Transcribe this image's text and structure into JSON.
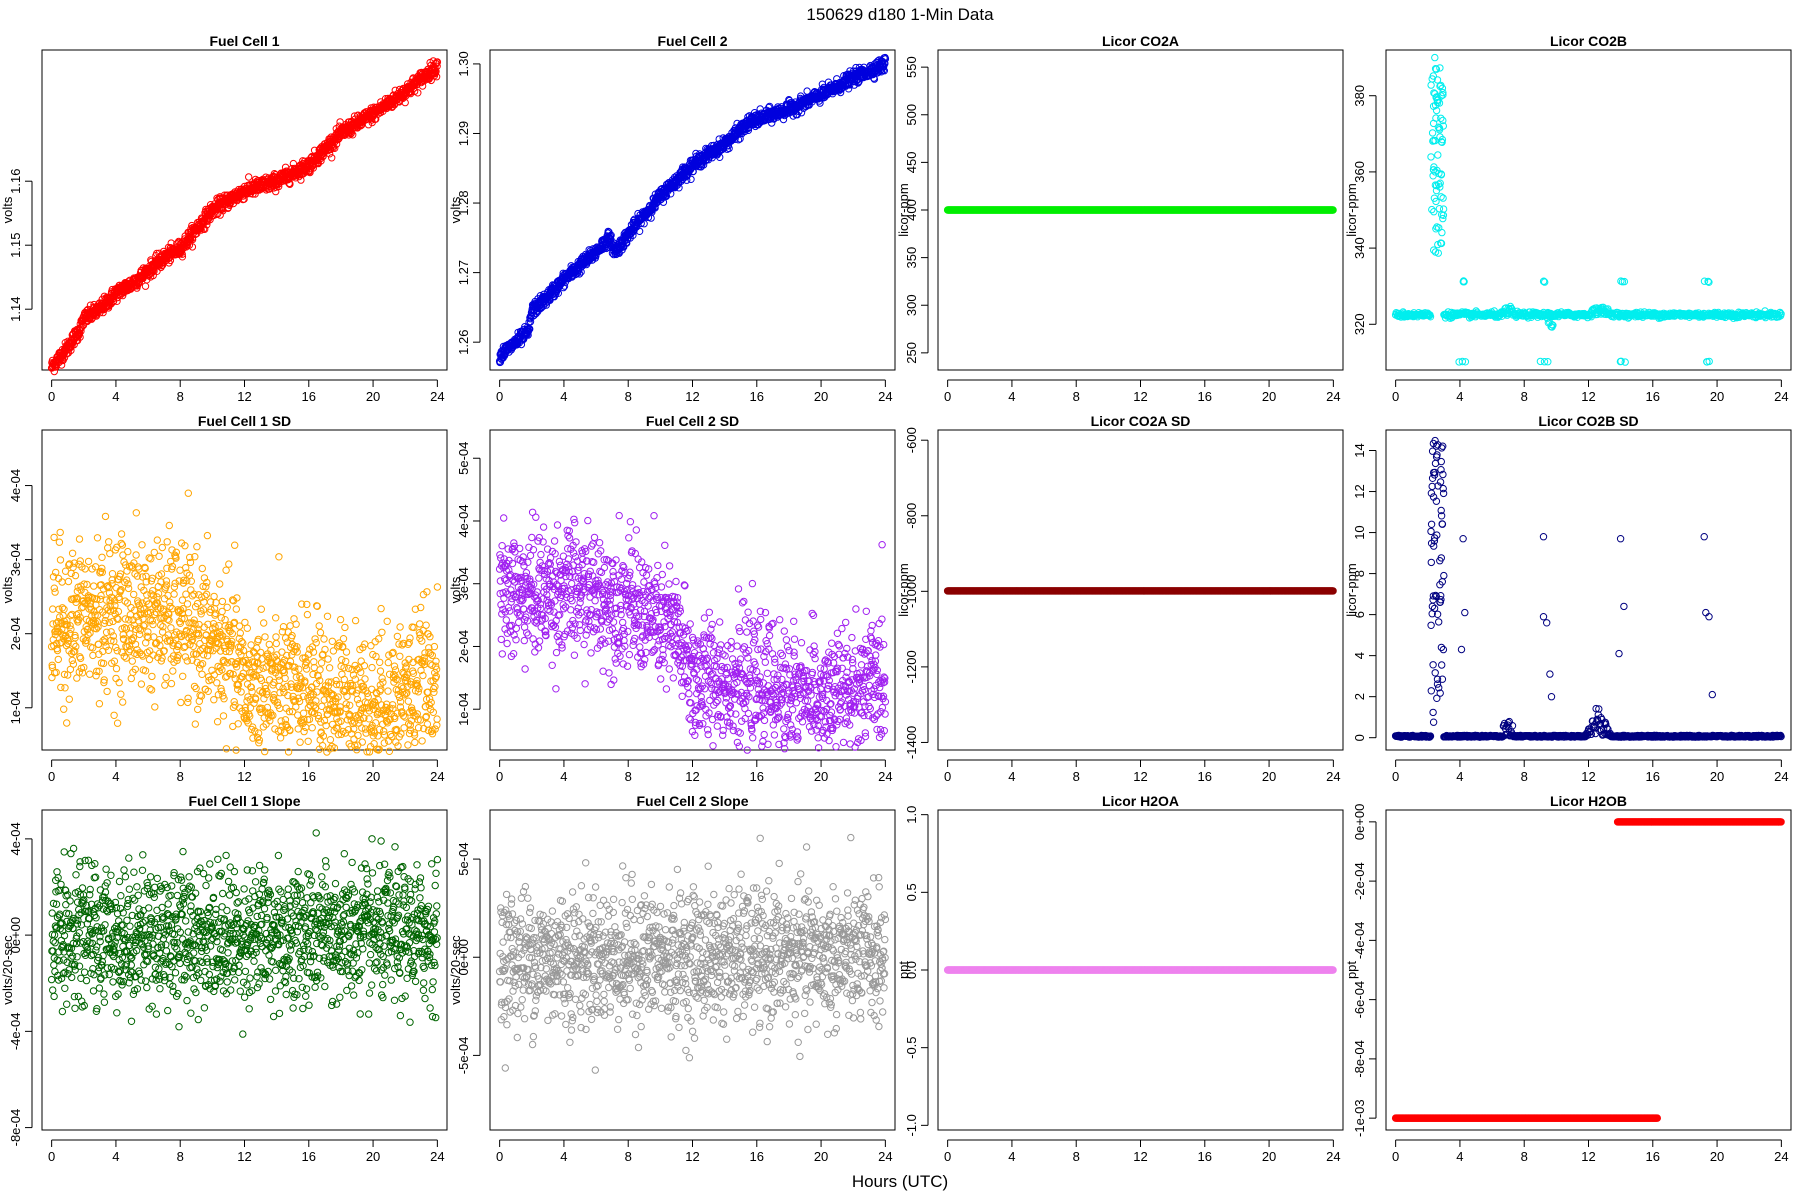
{
  "figure": {
    "title": "150629   d180   1-Min Data",
    "xlabel": "Hours (UTC)"
  },
  "chart_data": [
    {
      "id": "fc1",
      "type": "scatter",
      "title": "Fuel Cell 1",
      "ylabel": "volts",
      "color": "#ff0000",
      "xlim": [
        -0.6,
        24.6
      ],
      "ylim": [
        1.1305,
        1.1805
      ],
      "xticks": [
        0,
        4,
        8,
        12,
        16,
        20,
        24
      ],
      "yticks": [
        {
          "v": 1.14,
          "label": "1.14"
        },
        {
          "v": 1.15,
          "label": "1.15"
        },
        {
          "v": 1.16,
          "label": "1.16"
        }
      ],
      "gen": {
        "kind": "trend",
        "points": [
          [
            0,
            1.131
          ],
          [
            1,
            1.134
          ],
          [
            1.8,
            1.137
          ],
          [
            2,
            1.1385
          ],
          [
            3,
            1.14
          ],
          [
            4,
            1.1425
          ],
          [
            5,
            1.144
          ],
          [
            6,
            1.146
          ],
          [
            7,
            1.148
          ],
          [
            8,
            1.1495
          ],
          [
            10,
            1.1555
          ],
          [
            12,
            1.1585
          ],
          [
            14,
            1.16
          ],
          [
            16,
            1.1625
          ],
          [
            18,
            1.1675
          ],
          [
            20,
            1.1705
          ],
          [
            22,
            1.174
          ],
          [
            24,
            1.178
          ]
        ],
        "noise": 0.0006,
        "n": 1440
      }
    },
    {
      "id": "fc2",
      "type": "scatter",
      "title": "Fuel Cell 2",
      "ylabel": "volts",
      "color": "#0000dd",
      "xlim": [
        -0.6,
        24.6
      ],
      "ylim": [
        1.256,
        1.302
      ],
      "xticks": [
        0,
        4,
        8,
        12,
        16,
        20,
        24
      ],
      "yticks": [
        {
          "v": 1.26,
          "label": "1.26"
        },
        {
          "v": 1.27,
          "label": "1.27"
        },
        {
          "v": 1.28,
          "label": "1.28"
        },
        {
          "v": 1.29,
          "label": "1.29"
        },
        {
          "v": 1.3,
          "label": "1.30"
        }
      ],
      "gen": {
        "kind": "trend",
        "points": [
          [
            0,
            1.258
          ],
          [
            1.8,
            1.2615
          ],
          [
            2,
            1.2645
          ],
          [
            3,
            1.2665
          ],
          [
            4,
            1.269
          ],
          [
            5,
            1.271
          ],
          [
            6,
            1.273
          ],
          [
            6.8,
            1.275
          ],
          [
            7.2,
            1.273
          ],
          [
            8,
            1.2755
          ],
          [
            10,
            1.281
          ],
          [
            12,
            1.2855
          ],
          [
            14,
            1.2885
          ],
          [
            15.5,
            1.2915
          ],
          [
            16,
            1.292
          ],
          [
            18,
            1.2935
          ],
          [
            20,
            1.2955
          ],
          [
            22,
            1.298
          ],
          [
            24,
            1.3
          ]
        ],
        "noise": 0.0005,
        "n": 1440
      }
    },
    {
      "id": "co2a",
      "type": "scatter",
      "title": "Licor CO2A",
      "ylabel": "licor-ppm",
      "color": "#00ee00",
      "xlim": [
        -0.6,
        24.6
      ],
      "ylim": [
        232,
        568
      ],
      "xticks": [
        0,
        4,
        8,
        12,
        16,
        20,
        24
      ],
      "yticks": [
        {
          "v": 250,
          "label": "250"
        },
        {
          "v": 300,
          "label": "300"
        },
        {
          "v": 350,
          "label": "350"
        },
        {
          "v": 400,
          "label": "400"
        },
        {
          "v": 450,
          "label": "450"
        },
        {
          "v": 500,
          "label": "500"
        },
        {
          "v": 550,
          "label": "550"
        }
      ],
      "gen": {
        "kind": "flat",
        "value": 400,
        "n": 1440
      }
    },
    {
      "id": "co2b",
      "type": "scatter",
      "title": "Licor CO2B",
      "ylabel": "licor-ppm",
      "color": "#00eeee",
      "xlim": [
        -0.6,
        24.6
      ],
      "ylim": [
        308,
        392
      ],
      "xticks": [
        0,
        4,
        8,
        12,
        16,
        20,
        24
      ],
      "yticks": [
        {
          "v": 320,
          "label": "320"
        },
        {
          "v": 340,
          "label": "340"
        },
        {
          "v": 360,
          "label": "360"
        },
        {
          "v": 380,
          "label": "380"
        }
      ],
      "gen": {
        "kind": "co2b",
        "base": 322.5,
        "spike_range": [
          338,
          390
        ],
        "spike_x": [
          2.2,
          3.0
        ],
        "outlier_low": 310,
        "outlier_high": 331
      }
    },
    {
      "id": "fc1sd",
      "type": "scatter",
      "title": "Fuel Cell 1 SD",
      "ylabel": "volts",
      "color": "#ffa500",
      "xlim": [
        -0.6,
        24.6
      ],
      "ylim": [
        4.3e-05,
        0.000475
      ],
      "xticks": [
        0,
        4,
        8,
        12,
        16,
        20,
        24
      ],
      "yticks": [
        {
          "v": 0.0001,
          "label": "1e-04"
        },
        {
          "v": 0.0002,
          "label": "2e-04"
        },
        {
          "v": 0.0003,
          "label": "3e-04"
        },
        {
          "v": 0.0004,
          "label": "4e-04"
        }
      ],
      "gen": {
        "kind": "noisy",
        "points": [
          [
            0,
            0.00021
          ],
          [
            4,
            0.00023
          ],
          [
            8,
            0.00022
          ],
          [
            11,
            0.00017
          ],
          [
            12,
            0.00013
          ],
          [
            16,
            0.00012
          ],
          [
            20,
            0.0001
          ],
          [
            24,
            0.00014
          ]
        ],
        "noise": 5e-05,
        "n": 1440
      }
    },
    {
      "id": "fc2sd",
      "type": "scatter",
      "title": "Fuel Cell 2 SD",
      "ylabel": "volts",
      "color": "#a020f0",
      "xlim": [
        -0.6,
        24.6
      ],
      "ylim": [
        3.5e-05,
        0.000545
      ],
      "xticks": [
        0,
        4,
        8,
        12,
        16,
        20,
        24
      ],
      "yticks": [
        {
          "v": 0.0001,
          "label": "1e-04"
        },
        {
          "v": 0.0002,
          "label": "2e-04"
        },
        {
          "v": 0.0003,
          "label": "3e-04"
        },
        {
          "v": 0.0004,
          "label": "4e-04"
        },
        {
          "v": 0.0005,
          "label": "5e-04"
        }
      ],
      "gen": {
        "kind": "noisy",
        "points": [
          [
            0,
            0.00028
          ],
          [
            4,
            0.00029
          ],
          [
            8,
            0.00027
          ],
          [
            11,
            0.00022
          ],
          [
            12,
            0.00015
          ],
          [
            16,
            0.00014
          ],
          [
            20,
            0.00011
          ],
          [
            24,
            0.00015
          ]
        ],
        "noise": 5e-05,
        "n": 1440
      }
    },
    {
      "id": "co2asd",
      "type": "scatter",
      "title": "Licor CO2A SD",
      "ylabel": "licor-ppm",
      "color": "#8b0000",
      "xlim": [
        -0.6,
        24.6
      ],
      "ylim": [
        -1420,
        -573
      ],
      "xticks": [
        0,
        4,
        8,
        12,
        16,
        20,
        24
      ],
      "yticks": [
        {
          "v": -1400,
          "label": "-1400"
        },
        {
          "v": -1200,
          "label": "-1200"
        },
        {
          "v": -1000,
          "label": "-1000"
        },
        {
          "v": -800,
          "label": "-800"
        },
        {
          "v": -600,
          "label": "-600"
        }
      ],
      "gen": {
        "kind": "flat",
        "value": -999,
        "n": 1440
      }
    },
    {
      "id": "co2bsd",
      "type": "scatter",
      "title": "Licor CO2B SD",
      "ylabel": "licor-ppm",
      "color": "#000080",
      "xlim": [
        -0.6,
        24.6
      ],
      "ylim": [
        -0.6,
        15
      ],
      "xticks": [
        0,
        4,
        8,
        12,
        16,
        20,
        24
      ],
      "yticks": [
        {
          "v": 0,
          "label": "0"
        },
        {
          "v": 2,
          "label": "2"
        },
        {
          "v": 4,
          "label": "4"
        },
        {
          "v": 6,
          "label": "6"
        },
        {
          "v": 8,
          "label": "8"
        },
        {
          "v": 10,
          "label": "10"
        },
        {
          "v": 12,
          "label": "12"
        },
        {
          "v": 14,
          "label": "14"
        }
      ],
      "gen": {
        "kind": "co2bsd"
      }
    },
    {
      "id": "fc1slope",
      "type": "scatter",
      "title": "Fuel Cell 1 Slope",
      "ylabel": "volts/20-sec",
      "color": "#006400",
      "xlim": [
        -0.6,
        24.6
      ],
      "ylim": [
        -0.00081,
        0.00052
      ],
      "xticks": [
        0,
        4,
        8,
        12,
        16,
        20,
        24
      ],
      "yticks": [
        {
          "v": -0.0008,
          "label": "-8e-04"
        },
        {
          "v": -0.0004,
          "label": "-4e-04"
        },
        {
          "v": 0,
          "label": "0e+00"
        },
        {
          "v": 0.0004,
          "label": "4e-04"
        }
      ],
      "gen": {
        "kind": "noisy",
        "points": [
          [
            0,
            0
          ],
          [
            24,
            0
          ]
        ],
        "noise": 0.00014,
        "n": 1440
      }
    },
    {
      "id": "fc2slope",
      "type": "scatter",
      "title": "Fuel Cell 2 Slope",
      "ylabel": "volts/20-sec",
      "color": "#999999",
      "xlim": [
        -0.6,
        24.6
      ],
      "ylim": [
        -0.00088,
        0.00075
      ],
      "xticks": [
        0,
        4,
        8,
        12,
        16,
        20,
        24
      ],
      "yticks": [
        {
          "v": -0.0005,
          "label": "-5e-04"
        },
        {
          "v": 0,
          "label": "0e+00"
        },
        {
          "v": 0.0005,
          "label": "5e-04"
        }
      ],
      "gen": {
        "kind": "noisy",
        "points": [
          [
            0,
            0
          ],
          [
            24,
            0
          ]
        ],
        "noise": 0.00017,
        "n": 1440
      }
    },
    {
      "id": "h2oa",
      "type": "scatter",
      "title": "Licor H2OA",
      "ylabel": "ppt",
      "color": "#ee82ee",
      "xlim": [
        -0.6,
        24.6
      ],
      "ylim": [
        -1.03,
        1.03
      ],
      "xticks": [
        0,
        4,
        8,
        12,
        16,
        20,
        24
      ],
      "yticks": [
        {
          "v": -1,
          "label": "-1.0"
        },
        {
          "v": -0.5,
          "label": "-0.5"
        },
        {
          "v": 0,
          "label": "0.0"
        },
        {
          "v": 0.5,
          "label": "0.5"
        },
        {
          "v": 1,
          "label": "1.0"
        }
      ],
      "gen": {
        "kind": "flat",
        "value": 0,
        "n": 1440
      }
    },
    {
      "id": "h2ob",
      "type": "scatter",
      "title": "Licor H2OB",
      "ylabel": "ppt",
      "color": "#ff0000",
      "xlim": [
        -0.6,
        24.6
      ],
      "ylim": [
        -0.00104,
        4e-05
      ],
      "xticks": [
        0,
        4,
        8,
        12,
        16,
        20,
        24
      ],
      "yticks": [
        {
          "v": -0.001,
          "label": "-1e-03"
        },
        {
          "v": -0.0008,
          "label": "-8e-04"
        },
        {
          "v": -0.0006,
          "label": "-6e-04"
        },
        {
          "v": -0.0004,
          "label": "-4e-04"
        },
        {
          "v": -0.0002,
          "label": "-2e-04"
        },
        {
          "v": 0,
          "label": "0e+00"
        }
      ],
      "gen": {
        "kind": "step",
        "low": -0.001,
        "high": 0,
        "low_x": [
          0,
          16.3
        ],
        "high_x": [
          13.8,
          24
        ]
      }
    }
  ]
}
